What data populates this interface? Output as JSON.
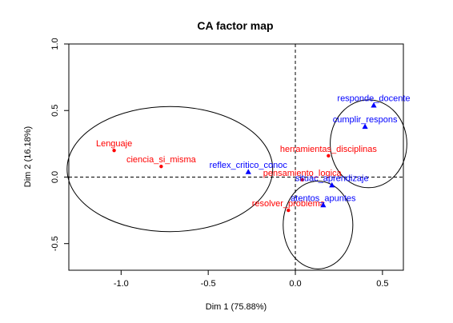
{
  "chart_data": {
    "type": "scatter",
    "title": "CA factor map",
    "xlabel": "Dim 1 (75.88%)",
    "ylabel": "Dim 2 (16.18%)",
    "xlim": [
      -1.3,
      0.62
    ],
    "ylim": [
      -0.7,
      1.0
    ],
    "x_ticks": [
      -1.0,
      -0.5,
      0.0,
      0.5
    ],
    "x_tick_labels": [
      "-1.0",
      "-0.5",
      "0.0",
      "0.5"
    ],
    "y_ticks": [
      -0.5,
      0.0,
      0.5,
      1.0
    ],
    "y_tick_labels": [
      "-0.5",
      "0.0",
      "0.5",
      "1.0"
    ],
    "grid": false,
    "reference_lines": {
      "x": 0,
      "y": 0,
      "style": "dashed"
    },
    "series": [
      {
        "color": "#ff0000",
        "marker": "circle",
        "points": [
          {
            "label": "Lenguaje",
            "x": -1.04,
            "y": 0.2
          },
          {
            "label": "ciencia_si_misma",
            "x": -0.77,
            "y": 0.08
          },
          {
            "label": "herramientas_disciplinas",
            "x": 0.19,
            "y": 0.16
          },
          {
            "label": "pensamiento_logica",
            "x": 0.04,
            "y": -0.02
          },
          {
            "label": "resolver_problema",
            "x": -0.04,
            "y": -0.25
          }
        ]
      },
      {
        "color": "#0000ff",
        "marker": "triangle",
        "points": [
          {
            "label": "responde_docente",
            "x": 0.45,
            "y": 0.54
          },
          {
            "label": "cumplir_respons",
            "x": 0.4,
            "y": 0.38
          },
          {
            "label": "reflex_critico_conoc",
            "x": -0.27,
            "y": 0.04
          },
          {
            "label": "situac_aprendizaje",
            "x": 0.21,
            "y": -0.06
          },
          {
            "label": "atentos_apuntes",
            "x": 0.16,
            "y": -0.21
          }
        ]
      }
    ],
    "circles": [
      {
        "cx": -0.72,
        "cy": 0.06,
        "rx": 0.59,
        "ry": 0.47
      },
      {
        "cx": 0.42,
        "cy": 0.25,
        "rx": 0.22,
        "ry": 0.33
      },
      {
        "cx": 0.13,
        "cy": -0.36,
        "rx": 0.2,
        "ry": 0.33
      }
    ]
  }
}
